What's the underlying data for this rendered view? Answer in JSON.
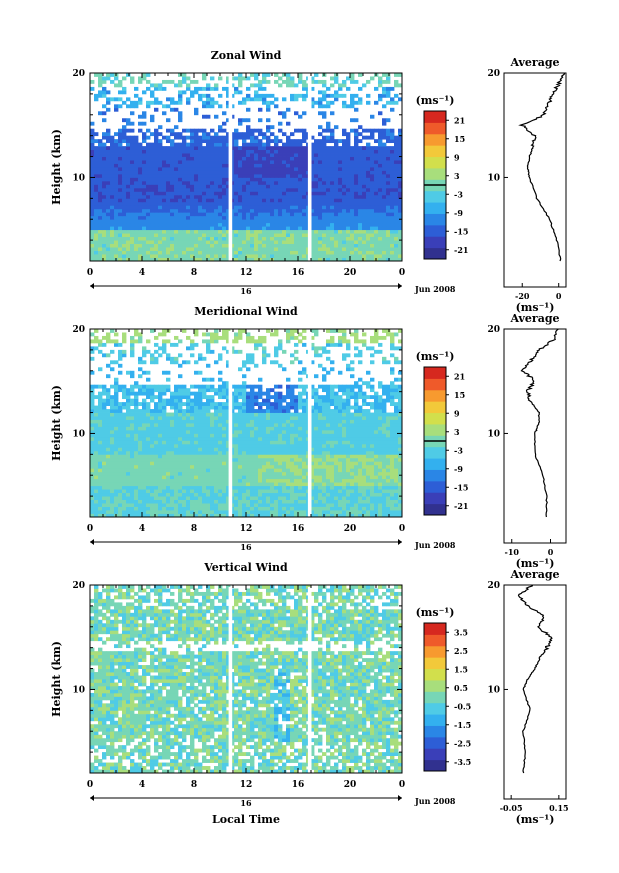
{
  "figure": {
    "xlabel": "Local Time",
    "date_label": "Jun 2008",
    "day_label": "16",
    "avg_title": "Average",
    "unit_label": "(ms⁻¹)",
    "ylabel": "Height (km)"
  },
  "colors": {
    "scale": [
      "#31318f",
      "#3a3fb8",
      "#2d5ed6",
      "#2a86e6",
      "#33b0ef",
      "#4fcbe6",
      "#77d6b6",
      "#a8de7c",
      "#d2df4c",
      "#f2c93a",
      "#f79a2f",
      "#ef5a2a",
      "#d6281f"
    ]
  },
  "chart_data": [
    {
      "type": "heatmap",
      "title": "Zonal Wind",
      "ylabel": "Height (km)",
      "xlabel": "",
      "xlim": [
        0,
        24
      ],
      "ylim": [
        2,
        20
      ],
      "xticks": [
        "0",
        "4",
        "8",
        "12",
        "16",
        "20",
        "0"
      ],
      "yticks": [
        "10",
        "20"
      ],
      "colorbar": {
        "label": "(ms⁻¹)",
        "ticks": [
          "21",
          "15",
          "9",
          "3",
          "-3",
          "-9",
          "-15",
          "-21"
        ],
        "range": [
          -24,
          24
        ],
        "zero_line": true
      },
      "gaps_hours": [
        10.8,
        16.9
      ],
      "average_profile": {
        "title": "Average",
        "xlabel": "(ms⁻¹)",
        "xticks": [
          "-20",
          "0"
        ],
        "xlim": [
          -30,
          4
        ],
        "height_km": [
          2,
          4,
          6,
          8,
          10,
          11,
          12,
          13,
          14,
          15,
          16,
          17,
          18,
          19,
          20
        ],
        "values": [
          1,
          -1,
          -5,
          -12,
          -16,
          -17,
          -16,
          -14,
          -13,
          -20,
          -8,
          -6,
          -3,
          0,
          3
        ]
      }
    },
    {
      "type": "heatmap",
      "title": "Meridional Wind",
      "ylabel": "Height (km)",
      "xlabel": "",
      "xlim": [
        0,
        24
      ],
      "ylim": [
        2,
        20
      ],
      "xticks": [
        "0",
        "4",
        "8",
        "12",
        "16",
        "20",
        "0"
      ],
      "yticks": [
        "10",
        "20"
      ],
      "colorbar": {
        "label": "(ms⁻¹)",
        "ticks": [
          "21",
          "15",
          "9",
          "3",
          "-3",
          "-9",
          "-15",
          "-21"
        ],
        "range": [
          -24,
          24
        ],
        "zero_line": true
      },
      "gaps_hours": [
        10.8,
        16.9
      ],
      "average_profile": {
        "title": "Average",
        "xlabel": "(ms⁻¹)",
        "xticks": [
          "-10",
          "0"
        ],
        "xlim": [
          -12,
          4
        ],
        "height_km": [
          2,
          4,
          6,
          8,
          10,
          11,
          12,
          13,
          14,
          15,
          16,
          17,
          18,
          19,
          20
        ],
        "values": [
          -1,
          -1,
          -2,
          -4,
          -4,
          -3,
          -3,
          -5,
          -6,
          -4,
          -7,
          -5,
          -3,
          1,
          2
        ]
      }
    },
    {
      "type": "heatmap",
      "title": "Vertical Wind",
      "ylabel": "Height (km)",
      "xlabel": "Local Time",
      "xlim": [
        0,
        24
      ],
      "ylim": [
        2,
        20
      ],
      "xticks": [
        "0",
        "4",
        "8",
        "12",
        "16",
        "20",
        "0"
      ],
      "yticks": [
        "10",
        "20"
      ],
      "colorbar": {
        "label": "(ms⁻¹)",
        "ticks": [
          "3.5",
          "2.5",
          "1.5",
          "0.5",
          "-0.5",
          "-1.5",
          "-2.5",
          "-3.5"
        ],
        "range": [
          -4,
          4
        ],
        "zero_line": false
      },
      "gaps_hours": [
        10.8,
        16.9
      ],
      "average_profile": {
        "title": "Average",
        "xlabel": "(ms⁻¹)",
        "xticks": [
          "-0.05",
          "0.15"
        ],
        "xlim": [
          -0.08,
          0.18
        ],
        "height_km": [
          2,
          4,
          6,
          8,
          10,
          11,
          12,
          13,
          14,
          15,
          16,
          17,
          18,
          19,
          20
        ],
        "values": [
          0.0,
          0.01,
          0.0,
          0.03,
          0.0,
          0.02,
          0.05,
          0.07,
          0.1,
          0.12,
          0.06,
          0.09,
          0.02,
          -0.02,
          0.04
        ]
      }
    }
  ]
}
